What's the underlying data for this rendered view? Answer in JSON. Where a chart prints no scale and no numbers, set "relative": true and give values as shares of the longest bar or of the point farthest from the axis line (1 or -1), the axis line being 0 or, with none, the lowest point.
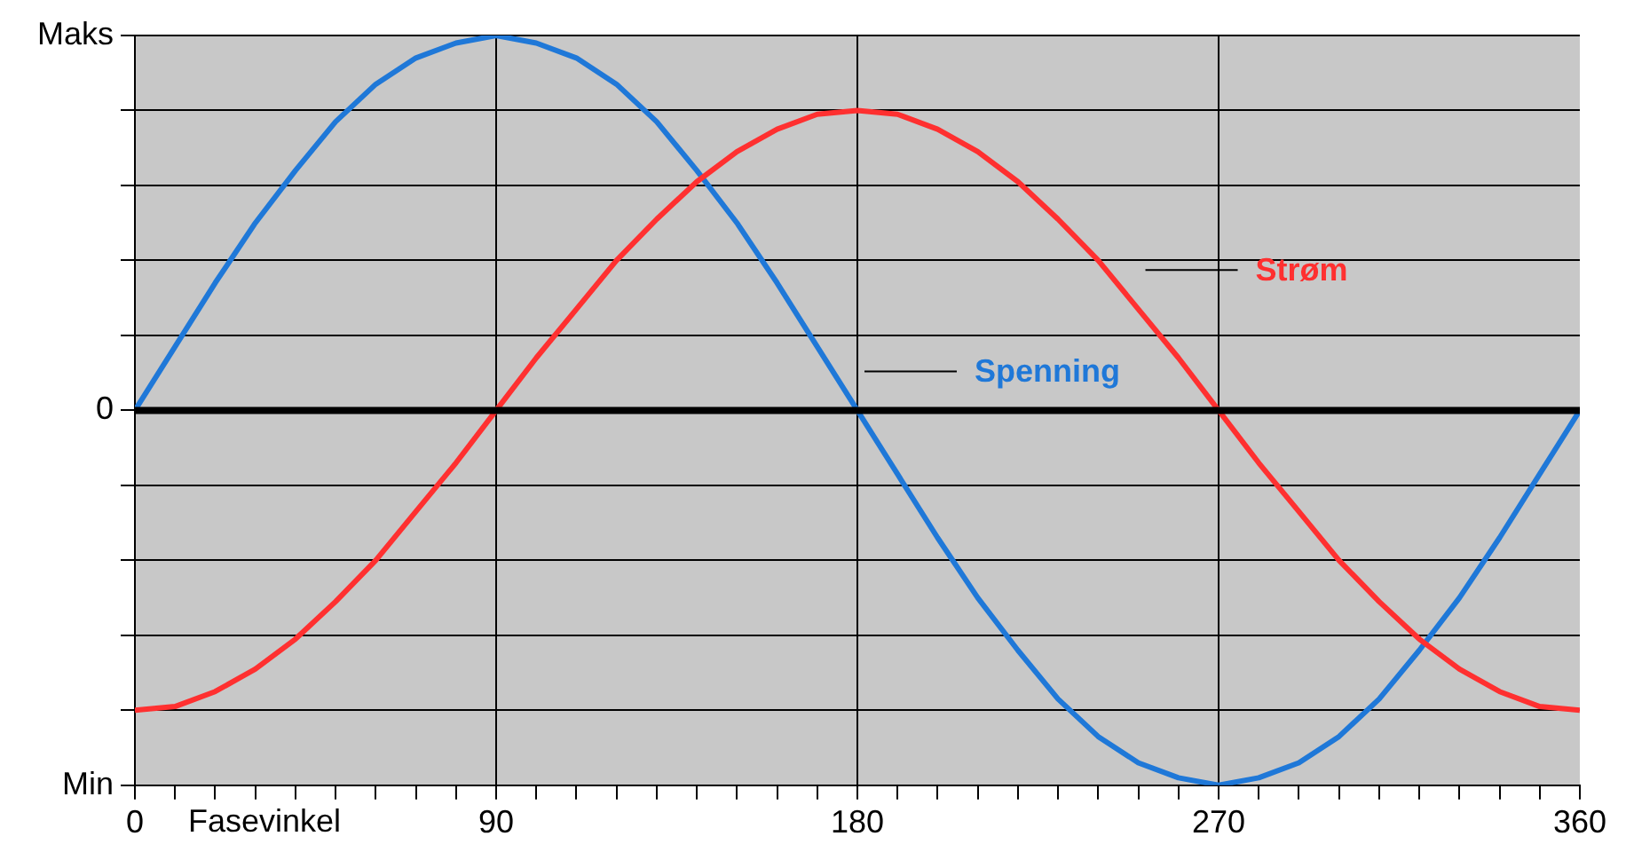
{
  "chart_data": {
    "type": "line",
    "xlabel": "Fasevinkel",
    "x": [
      0,
      10,
      20,
      30,
      40,
      50,
      60,
      70,
      80,
      90,
      100,
      110,
      120,
      130,
      140,
      150,
      160,
      170,
      180,
      190,
      200,
      210,
      220,
      230,
      240,
      250,
      260,
      270,
      280,
      290,
      300,
      310,
      320,
      330,
      340,
      350,
      360
    ],
    "series": [
      {
        "name": "Spenning",
        "color": "#1f78d8",
        "values": [
          0,
          0.17,
          0.34,
          0.5,
          0.64,
          0.77,
          0.87,
          0.94,
          0.98,
          1,
          0.98,
          0.94,
          0.87,
          0.77,
          0.64,
          0.5,
          0.34,
          0.17,
          0,
          -0.17,
          -0.34,
          -0.5,
          -0.64,
          -0.77,
          -0.87,
          -0.94,
          -0.98,
          -1,
          -0.98,
          -0.94,
          -0.87,
          -0.77,
          -0.64,
          -0.5,
          -0.34,
          -0.17,
          0
        ]
      },
      {
        "name": "Strøm",
        "color": "#ff3030",
        "values": [
          -0.8,
          -0.79,
          -0.75,
          -0.69,
          -0.61,
          -0.51,
          -0.4,
          -0.27,
          -0.14,
          0,
          0.14,
          0.27,
          0.4,
          0.51,
          0.61,
          0.69,
          0.75,
          0.79,
          0.8,
          0.79,
          0.75,
          0.69,
          0.61,
          0.51,
          0.4,
          0.27,
          0.14,
          0,
          -0.14,
          -0.27,
          -0.4,
          -0.51,
          -0.61,
          -0.69,
          -0.75,
          -0.79,
          -0.8
        ]
      }
    ],
    "xlim": [
      0,
      360
    ],
    "xticks": [
      0,
      {
        "value": 10,
        "label": null
      },
      {
        "value": 20,
        "label": null
      },
      {
        "value": 30,
        "label": null
      },
      {
        "value": 40,
        "label": null
      },
      {
        "value": 50,
        "label": null
      },
      {
        "value": 60,
        "label": null
      },
      {
        "value": 70,
        "label": null
      },
      {
        "value": 80,
        "label": null
      },
      90,
      {
        "value": 100,
        "label": null
      },
      {
        "value": 110,
        "label": null
      },
      {
        "value": 120,
        "label": null
      },
      {
        "value": 130,
        "label": null
      },
      {
        "value": 140,
        "label": null
      },
      {
        "value": 150,
        "label": null
      },
      {
        "value": 160,
        "label": null
      },
      {
        "value": 170,
        "label": null
      },
      180,
      {
        "value": 190,
        "label": null
      },
      {
        "value": 200,
        "label": null
      },
      {
        "value": 210,
        "label": null
      },
      {
        "value": 220,
        "label": null
      },
      {
        "value": 230,
        "label": null
      },
      {
        "value": 240,
        "label": null
      },
      {
        "value": 250,
        "label": null
      },
      {
        "value": 260,
        "label": null
      },
      270,
      {
        "value": 280,
        "label": null
      },
      {
        "value": 290,
        "label": null
      },
      {
        "value": 300,
        "label": null
      },
      {
        "value": 310,
        "label": null
      },
      {
        "value": 320,
        "label": null
      },
      {
        "value": 330,
        "label": null
      },
      {
        "value": 340,
        "label": null
      },
      {
        "value": 350,
        "label": null
      },
      360
    ],
    "relative": true,
    "annotations": [
      "Maks",
      "0",
      "Min"
    ],
    "grid": true,
    "ref_lines": [
      {
        "axis": "y",
        "value": 0,
        "color": "#000000"
      }
    ],
    "marker": "none",
    "line_style": "solid",
    "legend": false
  }
}
